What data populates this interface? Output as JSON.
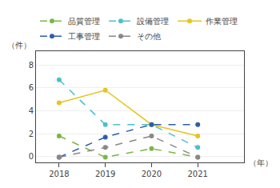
{
  "chart_data": {
    "type": "line",
    "x": [
      2018,
      2019,
      2020,
      2021
    ],
    "series": [
      {
        "name": "品質管理",
        "color": "#7ab648",
        "line_style": "dashed",
        "marker": "circle",
        "values": [
          1.8,
          -0.05,
          0.7,
          -0.05
        ]
      },
      {
        "name": "設備管理",
        "color": "#4bbfcf",
        "line_style": "dashed",
        "marker": "circle",
        "values": [
          6.7,
          2.8,
          2.8,
          0.8
        ]
      },
      {
        "name": "作業管理",
        "color": "#e8c420",
        "line_style": "solid",
        "marker": "circle",
        "values": [
          4.7,
          5.8,
          2.8,
          1.8
        ]
      },
      {
        "name": "工事管理",
        "color": "#2d5fa8",
        "line_style": "dashed",
        "marker": "circle",
        "values": [
          -0.05,
          1.7,
          2.8,
          2.8
        ]
      },
      {
        "name": "その他",
        "color": "#888888",
        "line_style": "dashed",
        "marker": "circle",
        "values": [
          -0.05,
          0.8,
          1.8,
          -0.05
        ]
      }
    ],
    "xlabel": "（年）",
    "ylabel": "（件）",
    "xlim": [
      2017.5,
      2022.0
    ],
    "xticks": [
      2018,
      2019,
      2020,
      2021
    ],
    "ylim": [
      -0.5,
      9.2
    ],
    "yticks": [
      0,
      2,
      4,
      6,
      8
    ],
    "grid": true,
    "legend": "top"
  }
}
